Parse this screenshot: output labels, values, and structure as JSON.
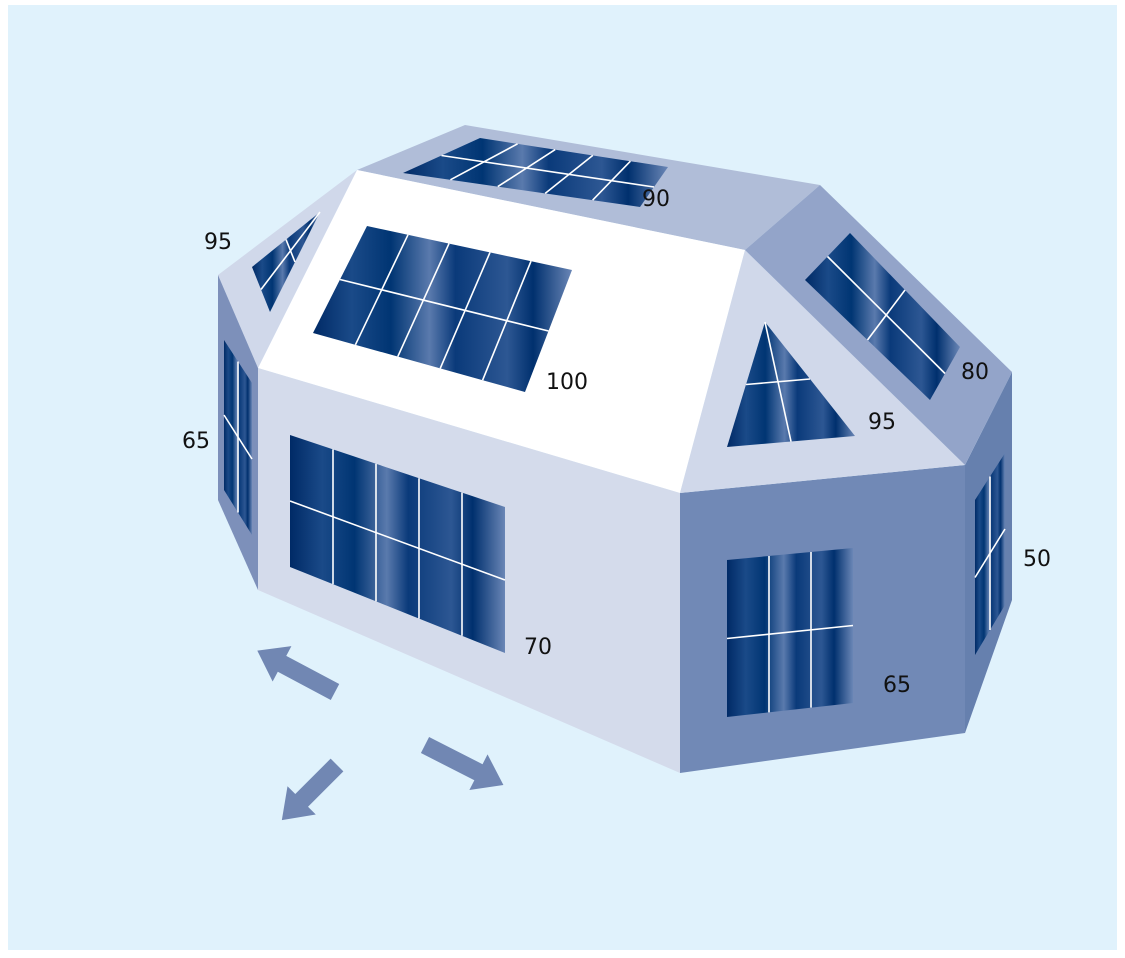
{
  "labels": [
    95,
    90,
    100,
    80,
    95,
    65,
    50,
    70,
    65
  ]
}
